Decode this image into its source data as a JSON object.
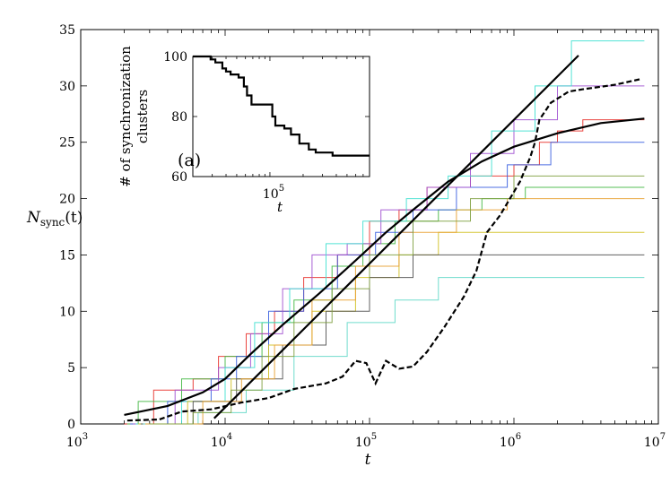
{
  "chart_data": [
    {
      "type": "line",
      "title": "",
      "xlabel": "t",
      "ylabel": "N_sync(t)",
      "ylabel_main": "N",
      "ylabel_sub": "sync",
      "ylabel_arg": "(t)",
      "x_scale": "log",
      "xlim": [
        1000,
        10000000
      ],
      "ylim": [
        0,
        35
      ],
      "x_tick_base": "10",
      "x_tick_exponents": [
        "3",
        "4",
        "5",
        "6",
        "7"
      ],
      "y_ticks": [
        0,
        5,
        10,
        15,
        20,
        25,
        30,
        35
      ],
      "grid": false,
      "series": [
        {
          "name": "run-red",
          "color": "#e8312b",
          "style": "thin-step",
          "points": [
            [
              2000,
              0
            ],
            [
              3200,
              3
            ],
            [
              6000,
              4
            ],
            [
              9000,
              6
            ],
            [
              14000,
              8
            ],
            [
              22000,
              10
            ],
            [
              35000,
              13
            ],
            [
              60000,
              15
            ],
            [
              100000,
              18
            ],
            [
              160000,
              19
            ],
            [
              250000,
              21
            ],
            [
              500000,
              22
            ],
            [
              1000000,
              23
            ],
            [
              1500000,
              25
            ],
            [
              2000000,
              26
            ],
            [
              3000000,
              27
            ],
            [
              8000000,
              27
            ]
          ]
        },
        {
          "name": "run-green",
          "color": "#42b842",
          "style": "thin-step",
          "points": [
            [
              2100,
              0
            ],
            [
              2500,
              2
            ],
            [
              5000,
              4
            ],
            [
              10000,
              6
            ],
            [
              18000,
              9
            ],
            [
              30000,
              11
            ],
            [
              55000,
              14
            ],
            [
              90000,
              16
            ],
            [
              150000,
              18
            ],
            [
              300000,
              19
            ],
            [
              600000,
              20
            ],
            [
              1200000,
              21
            ],
            [
              8000000,
              21
            ]
          ]
        },
        {
          "name": "run-blue",
          "color": "#3a5fe0",
          "style": "thin-step",
          "points": [
            [
              2200,
              0
            ],
            [
              4000,
              2
            ],
            [
              8000,
              4
            ],
            [
              12000,
              6
            ],
            [
              20000,
              10
            ],
            [
              35000,
              12
            ],
            [
              60000,
              15
            ],
            [
              110000,
              17
            ],
            [
              200000,
              19
            ],
            [
              400000,
              21
            ],
            [
              900000,
              23
            ],
            [
              1800000,
              25
            ],
            [
              8000000,
              25
            ]
          ]
        },
        {
          "name": "run-purple",
          "color": "#a050d0",
          "style": "thin-step",
          "points": [
            [
              2300,
              0
            ],
            [
              4500,
              3
            ],
            [
              9000,
              5
            ],
            [
              15000,
              8
            ],
            [
              25000,
              12
            ],
            [
              40000,
              15
            ],
            [
              70000,
              16
            ],
            [
              120000,
              19
            ],
            [
              250000,
              21
            ],
            [
              500000,
              24
            ],
            [
              1000000,
              27
            ],
            [
              2000000,
              30
            ],
            [
              8000000,
              30
            ]
          ]
        },
        {
          "name": "run-cyan",
          "color": "#40e0d0",
          "style": "thin-step",
          "points": [
            [
              2400,
              0
            ],
            [
              5000,
              2
            ],
            [
              10000,
              5
            ],
            [
              16000,
              9
            ],
            [
              28000,
              12
            ],
            [
              50000,
              16
            ],
            [
              90000,
              18
            ],
            [
              180000,
              20
            ],
            [
              350000,
              22
            ],
            [
              700000,
              26
            ],
            [
              1400000,
              30
            ],
            [
              2500000,
              34
            ],
            [
              8000000,
              34
            ]
          ]
        },
        {
          "name": "run-yellow",
          "color": "#d0c020",
          "style": "thin-step",
          "points": [
            [
              2500,
              0
            ],
            [
              5500,
              2
            ],
            [
              11000,
              4
            ],
            [
              20000,
              7
            ],
            [
              40000,
              10
            ],
            [
              80000,
              13
            ],
            [
              160000,
              15
            ],
            [
              300000,
              17
            ],
            [
              8000000,
              17
            ]
          ]
        },
        {
          "name": "run-gray",
          "color": "#505050",
          "style": "thin-step",
          "points": [
            [
              2600,
              0
            ],
            [
              6000,
              2
            ],
            [
              12000,
              4
            ],
            [
              25000,
              7
            ],
            [
              50000,
              10
            ],
            [
              100000,
              13
            ],
            [
              200000,
              15
            ],
            [
              8000000,
              15
            ]
          ]
        },
        {
          "name": "run-aqua",
          "color": "#60d8c8",
          "style": "thin-step",
          "points": [
            [
              2700,
              0
            ],
            [
              6500,
              1
            ],
            [
              14000,
              3
            ],
            [
              30000,
              6
            ],
            [
              70000,
              9
            ],
            [
              150000,
              11
            ],
            [
              300000,
              13
            ],
            [
              8000000,
              13
            ]
          ]
        },
        {
          "name": "run-orange",
          "color": "#e8a030",
          "style": "thin-step",
          "points": [
            [
              2800,
              0
            ],
            [
              7000,
              2
            ],
            [
              13000,
              4
            ],
            [
              22000,
              7
            ],
            [
              40000,
              11
            ],
            [
              80000,
              14
            ],
            [
              160000,
              17
            ],
            [
              400000,
              19
            ],
            [
              900000,
              20
            ],
            [
              8000000,
              20
            ]
          ]
        },
        {
          "name": "run-olive",
          "color": "#80a040",
          "style": "thin-step",
          "points": [
            [
              3000,
              0
            ],
            [
              6000,
              1
            ],
            [
              11000,
              3
            ],
            [
              18000,
              6
            ],
            [
              30000,
              9
            ],
            [
              55000,
              12
            ],
            [
              100000,
              15
            ],
            [
              200000,
              18
            ],
            [
              500000,
              20
            ],
            [
              1000000,
              22
            ],
            [
              8000000,
              22
            ]
          ]
        },
        {
          "name": "mean-fit",
          "color": "#000000",
          "style": "thick",
          "points": [
            [
              2000,
              0.8
            ],
            [
              4000,
              1.6
            ],
            [
              7000,
              2.8
            ],
            [
              10000,
              4.0
            ],
            [
              15000,
              6.2
            ],
            [
              25000,
              8.8
            ],
            [
              45000,
              11.6
            ],
            [
              80000,
              14.5
            ],
            [
              130000,
              17.0
            ],
            [
              200000,
              19.0
            ],
            [
              350000,
              21.5
            ],
            [
              600000,
              23.3
            ],
            [
              1000000,
              24.6
            ],
            [
              2000000,
              25.8
            ],
            [
              4000000,
              26.7
            ],
            [
              8000000,
              27.1
            ]
          ]
        },
        {
          "name": "log-linear-fit",
          "color": "#000000",
          "style": "thick",
          "points": [
            [
              8400,
              0.5
            ],
            [
              2800000,
              32.7
            ]
          ]
        },
        {
          "name": "dashed-curve",
          "color": "#000000",
          "style": "dashed",
          "points": [
            [
              2100,
              0.3
            ],
            [
              3500,
              0.4
            ],
            [
              5000,
              1.1
            ],
            [
              8000,
              1.3
            ],
            [
              13000,
              1.9
            ],
            [
              20000,
              2.3
            ],
            [
              30000,
              3.1
            ],
            [
              50000,
              3.6
            ],
            [
              65000,
              4.2
            ],
            [
              80000,
              5.6
            ],
            [
              95000,
              5.4
            ],
            [
              110000,
              3.6
            ],
            [
              130000,
              5.6
            ],
            [
              160000,
              4.9
            ],
            [
              200000,
              5.1
            ],
            [
              250000,
              6.4
            ],
            [
              330000,
              8.6
            ],
            [
              450000,
              11.3
            ],
            [
              550000,
              13.6
            ],
            [
              650000,
              17.0
            ],
            [
              800000,
              18.5
            ],
            [
              900000,
              19.6
            ],
            [
              1100000,
              21.5
            ],
            [
              1300000,
              23.7
            ],
            [
              1400000,
              25.0
            ],
            [
              1500000,
              27.0
            ],
            [
              1800000,
              28.5
            ],
            [
              2400000,
              29.5
            ],
            [
              3000000,
              29.7
            ],
            [
              5000000,
              30.1
            ],
            [
              7500000,
              30.6
            ]
          ]
        }
      ]
    },
    {
      "type": "line",
      "title": "",
      "annotation": "(a)",
      "xlabel": "t",
      "ylabel": "# of synchronization clusters",
      "ylabel_line1": "# of synchronization",
      "ylabel_line2": "clusters",
      "x_scale": "log",
      "xlim": [
        20000,
        800000
      ],
      "ylim": [
        60,
        100
      ],
      "x_tick_base": "10",
      "x_tick_exponents": [
        "5"
      ],
      "y_ticks": [
        60,
        80,
        100
      ],
      "grid": false,
      "series": [
        {
          "name": "clusters",
          "color": "#000000",
          "style": "thick-step",
          "points": [
            [
              20000,
              100
            ],
            [
              29000,
              99
            ],
            [
              32000,
              98
            ],
            [
              37000,
              96
            ],
            [
              40000,
              95
            ],
            [
              44000,
              94
            ],
            [
              52000,
              93
            ],
            [
              58000,
              90
            ],
            [
              62000,
              87
            ],
            [
              68000,
              84
            ],
            [
              90000,
              84
            ],
            [
              105000,
              80
            ],
            [
              112000,
              77
            ],
            [
              135000,
              76
            ],
            [
              155000,
              74
            ],
            [
              185000,
              71
            ],
            [
              225000,
              69
            ],
            [
              260000,
              68
            ],
            [
              370000,
              67
            ],
            [
              800000,
              67
            ]
          ]
        }
      ]
    }
  ]
}
